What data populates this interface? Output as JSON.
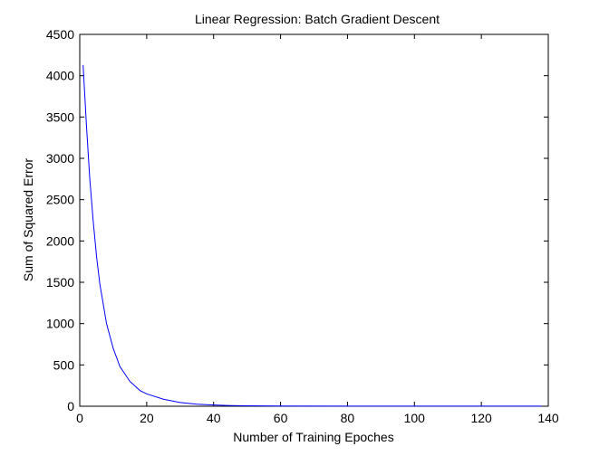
{
  "chart_data": {
    "type": "line",
    "title": "Linear Regression: Batch Gradient Descent",
    "xlabel": "Number of Training Epoches",
    "ylabel": "Sum of Squared Error",
    "xlim": [
      0,
      140
    ],
    "ylim": [
      0,
      4500
    ],
    "xticks": [
      0,
      20,
      40,
      60,
      80,
      100,
      120,
      140
    ],
    "yticks": [
      0,
      500,
      1000,
      1500,
      2000,
      2500,
      3000,
      3500,
      4000,
      4500
    ],
    "grid": false,
    "legend": "none",
    "series": [
      {
        "color": "#0000ff",
        "x": [
          1,
          2,
          3,
          4,
          5,
          6,
          8,
          10,
          12,
          15,
          18,
          20,
          25,
          30,
          35,
          40,
          45,
          50,
          60,
          80,
          100,
          120,
          138
        ],
        "y": [
          4130,
          3400,
          2750,
          2250,
          1820,
          1480,
          1000,
          700,
          480,
          300,
          190,
          150,
          85,
          45,
          25,
          15,
          8,
          5,
          3,
          2,
          1,
          1,
          1
        ]
      }
    ]
  }
}
